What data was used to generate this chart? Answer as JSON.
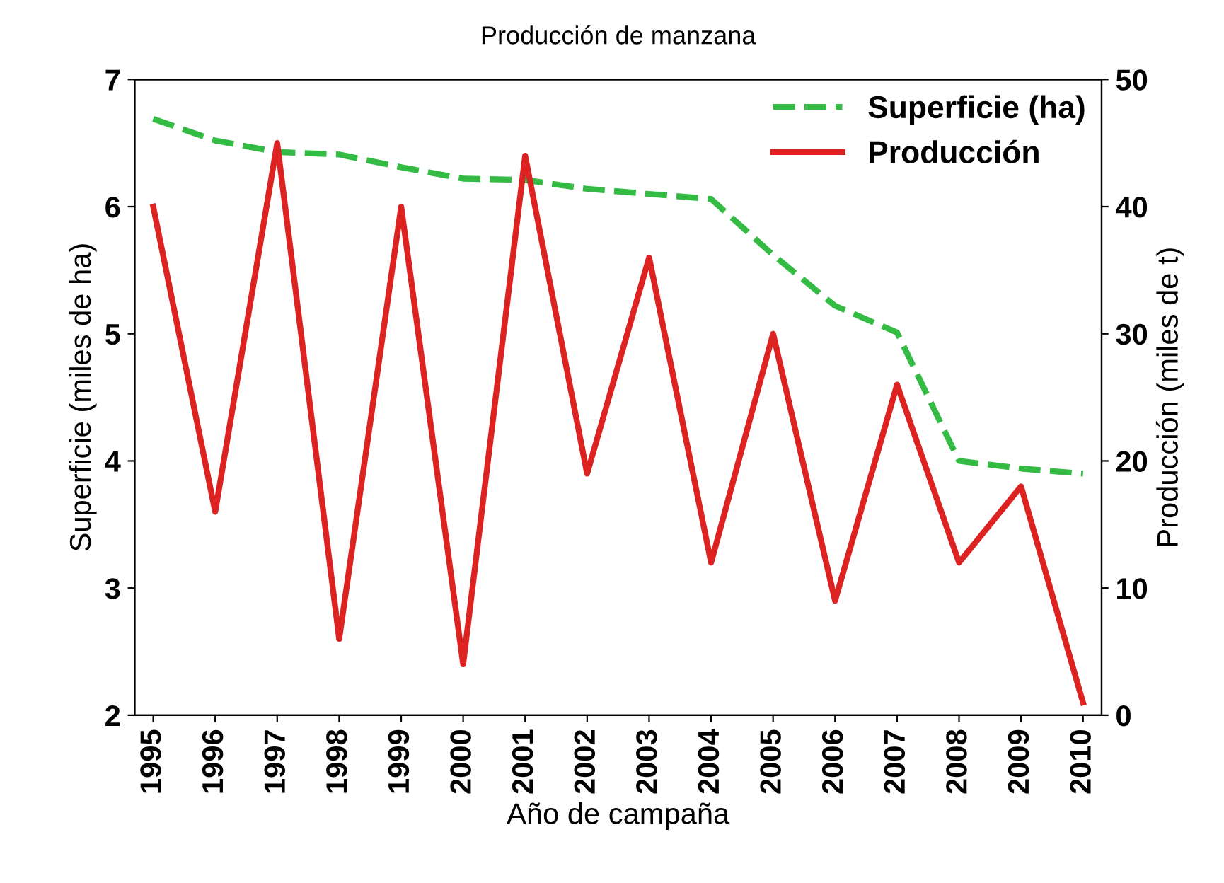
{
  "chart_data": {
    "type": "line",
    "title": "Producción de manzana",
    "xlabel": "Año de campaña",
    "ylabel": "Superficie (miles de ha)",
    "y2label": "Producción (miles de t)",
    "categories": [
      "1995",
      "1996",
      "1997",
      "1998",
      "1999",
      "2000",
      "2001",
      "2002",
      "2003",
      "2004",
      "2005",
      "2006",
      "2007",
      "2008",
      "2009",
      "2010"
    ],
    "series": [
      {
        "name": "Superficie (ha)",
        "color": "#33bb44",
        "line_style": "dashed",
        "values": [
          6.69,
          6.52,
          6.43,
          6.41,
          6.31,
          6.22,
          6.21,
          6.14,
          6.1,
          6.06,
          5.62,
          5.22,
          5.01,
          4.0,
          3.94,
          3.9
        ]
      },
      {
        "name": "Producción",
        "color": "#dd2222",
        "line_style": "solid",
        "axis": "y2",
        "values": [
          40,
          16,
          45,
          6,
          40,
          4,
          44,
          19,
          36,
          12,
          30,
          9,
          26,
          12,
          18,
          1
        ]
      }
    ],
    "ylim": [
      2,
      7
    ],
    "yticks": [
      2,
      3,
      4,
      5,
      6,
      7
    ],
    "y2lim": [
      0,
      50
    ],
    "y2ticks": [
      0,
      10,
      20,
      30,
      40,
      50
    ],
    "grid": false,
    "legend": "top right",
    "marker": "none"
  }
}
